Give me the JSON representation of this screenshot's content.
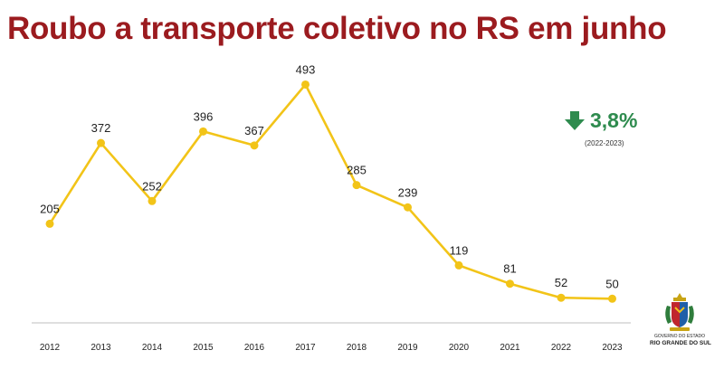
{
  "title": "Roubo a transporte coletivo no RS em junho",
  "change": {
    "value": "3,8%",
    "period": "(2022-2023)",
    "direction": "down",
    "color": "#2e8b4e",
    "icon": "down-arrow-icon"
  },
  "logo": {
    "line1": "GOVERNO DO ESTADO",
    "line2": "RIO GRANDE DO SUL"
  },
  "colors": {
    "title": "#9b1b1f",
    "line": "#f2c418",
    "axis": "#cccccc"
  },
  "chart_data": {
    "type": "line",
    "title": "Roubo a transporte coletivo no RS em junho",
    "xlabel": "",
    "ylabel": "",
    "grid": false,
    "legend": "none",
    "ylim": [
      0,
      520
    ],
    "categories": [
      "2012",
      "2013",
      "2014",
      "2015",
      "2016",
      "2017",
      "2018",
      "2019",
      "2020",
      "2021",
      "2022",
      "2023"
    ],
    "series": [
      {
        "values": [
          205,
          372,
          252,
          396,
          367,
          493,
          285,
          239,
          119,
          81,
          52,
          50
        ]
      }
    ]
  }
}
